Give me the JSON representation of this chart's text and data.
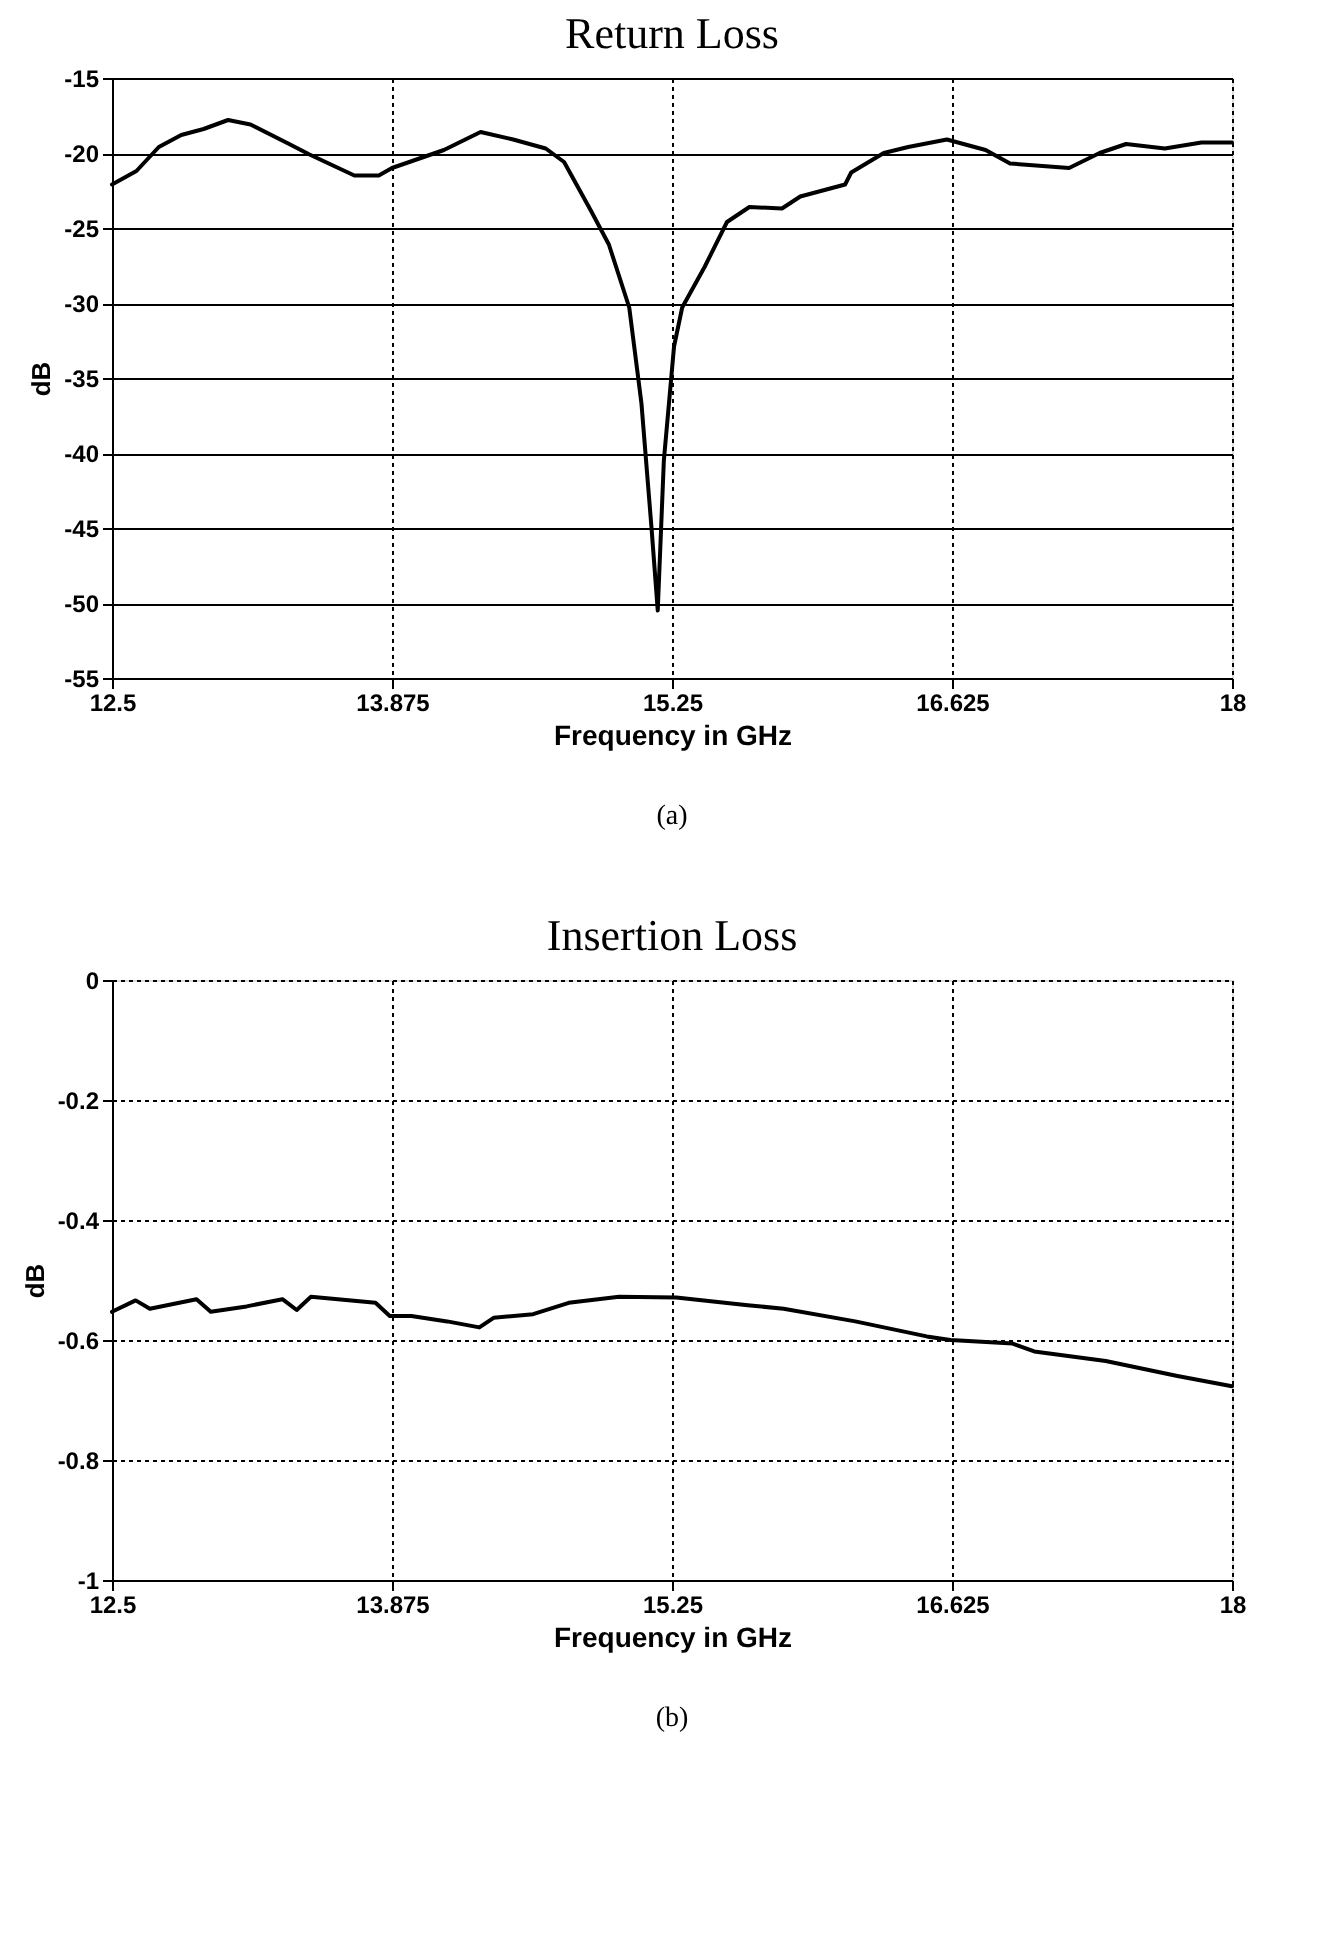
{
  "chart_data": [
    {
      "type": "line",
      "title": "Return Loss",
      "xlabel": "Frequency in GHz",
      "ylabel": "dB",
      "annotations": [
        "(a)"
      ],
      "grid": true,
      "marker": "none",
      "line_style": "solid",
      "xlim": [
        12.5,
        18
      ],
      "xticks": [
        12.5,
        13.875,
        15.25,
        16.625,
        18
      ],
      "ylim": [
        -55,
        -15
      ],
      "yticks": [
        -55,
        -50,
        -45,
        -40,
        -35,
        -30,
        -25,
        -20,
        -15
      ],
      "series": [
        {
          "color": "#000000",
          "x": [
            12.5,
            12.62,
            12.73,
            12.84,
            12.95,
            13.07,
            13.18,
            13.37,
            13.47,
            13.69,
            13.81,
            13.875,
            14.13,
            14.31,
            14.47,
            14.63,
            14.72,
            14.85,
            14.94,
            15.04,
            15.1,
            15.15,
            15.18,
            15.21,
            15.26,
            15.3,
            15.41,
            15.52,
            15.63,
            15.79,
            15.88,
            16.1,
            16.13,
            16.29,
            16.41,
            16.6,
            16.79,
            16.91,
            17.2,
            17.35,
            17.48,
            17.67,
            17.85,
            18
          ],
          "values": [
            -22.1,
            -21.2,
            -19.6,
            -18.8,
            -18.4,
            -17.8,
            -18.1,
            -19.4,
            -20.1,
            -21.5,
            -21.5,
            -21.0,
            -19.8,
            -18.6,
            -19.1,
            -19.7,
            -20.6,
            -23.8,
            -26.1,
            -30.3,
            -36.7,
            -45.1,
            -50.5,
            -40.5,
            -32.9,
            -30.3,
            -27.6,
            -24.6,
            -23.6,
            -23.7,
            -22.9,
            -22.1,
            -21.3,
            -20.0,
            -19.6,
            -19.1,
            -19.8,
            -20.7,
            -21.0,
            -20.0,
            -19.4,
            -19.7,
            -19.3,
            -19.3
          ]
        }
      ]
    },
    {
      "type": "line",
      "title": "Insertion Loss",
      "xlabel": "Frequency in GHz",
      "ylabel": "dB",
      "annotations": [
        "(b)"
      ],
      "grid": true,
      "marker": "none",
      "line_style": "solid",
      "xlim": [
        12.5,
        18
      ],
      "xticks": [
        12.5,
        13.875,
        15.25,
        16.625,
        18
      ],
      "ylim": [
        -1,
        0
      ],
      "yticks": [
        -1,
        -0.8,
        -0.6,
        -0.4,
        -0.2,
        0
      ],
      "series": [
        {
          "color": "#000000",
          "x": [
            12.5,
            12.616,
            12.686,
            12.915,
            12.985,
            13.161,
            13.337,
            13.407,
            13.477,
            13.794,
            13.864,
            13.97,
            14.146,
            14.304,
            14.374,
            14.568,
            14.743,
            14.99,
            15.271,
            15.622,
            15.798,
            16.15,
            16.501,
            16.617,
            16.923,
            17.029,
            17.38,
            17.732,
            18
          ],
          "values": [
            -0.553,
            -0.534,
            -0.548,
            -0.532,
            -0.553,
            -0.544,
            -0.532,
            -0.55,
            -0.528,
            -0.538,
            -0.56,
            -0.56,
            -0.569,
            -0.579,
            -0.563,
            -0.557,
            -0.538,
            -0.528,
            -0.529,
            -0.542,
            -0.548,
            -0.569,
            -0.594,
            -0.6,
            -0.606,
            -0.619,
            -0.635,
            -0.66,
            -0.677
          ]
        }
      ]
    }
  ]
}
